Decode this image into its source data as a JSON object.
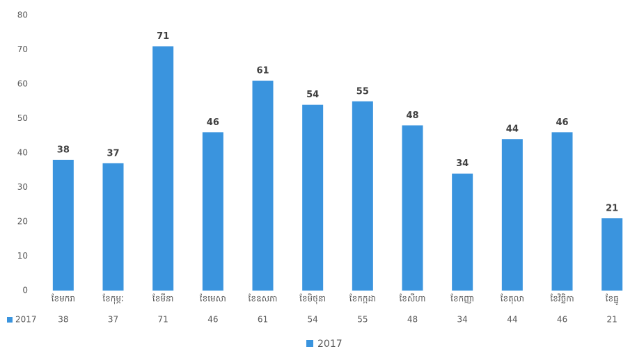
{
  "chart_data": {
    "type": "bar",
    "categories": [
      "ខែមករា",
      "ខែកុម្ភៈ",
      "ខែមីនា",
      "ខែមេសា",
      "ខែឧសភា",
      "ខែមិថុនា",
      "ខែកក្កដា",
      "ខែសីហា",
      "ខែកញ្ញា",
      "ខែតុលា",
      "ខែវិច្ឆិកា",
      "ខែធ្នូ"
    ],
    "series": [
      {
        "name": "2017",
        "color": "#3a94de",
        "values": [
          38,
          37,
          71,
          46,
          61,
          54,
          55,
          48,
          34,
          44,
          46,
          21
        ]
      }
    ],
    "ylim": [
      0,
      80
    ],
    "yticks": [
      0,
      10,
      20,
      30,
      40,
      50,
      60,
      70,
      80
    ],
    "grid": false,
    "legend": "bottom",
    "data_table": true
  }
}
